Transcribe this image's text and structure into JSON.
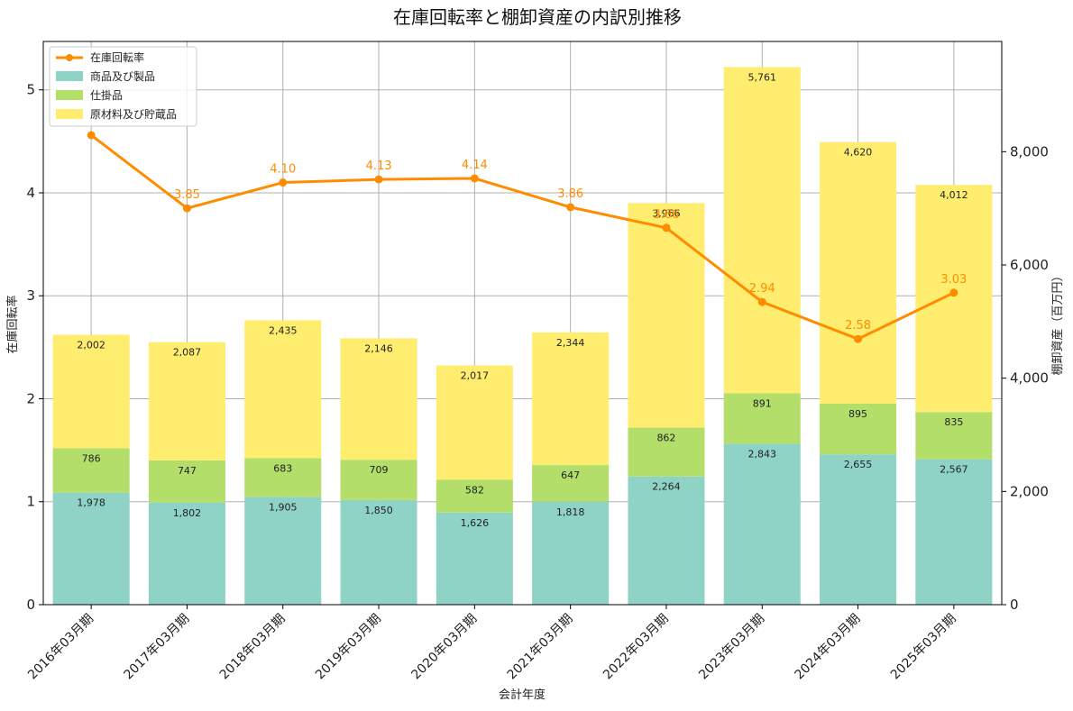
{
  "chart_data": {
    "type": "bar",
    "title": "在庫回転率と棚卸資産の内訳別推移",
    "xlabel": "会計年度",
    "ylabel_left": "在庫回転率",
    "ylabel_right": "棚卸資産（百万円）",
    "categories": [
      "2016年03月期",
      "2017年03月期",
      "2018年03月期",
      "2019年03月期",
      "2020年03月期",
      "2021年03月期",
      "2022年03月期",
      "2023年03月期",
      "2024年03月期",
      "2025年03月期"
    ],
    "ylim_left": [
      0,
      5.47
    ],
    "ylim_right": [
      0,
      9947
    ],
    "yticks_left": [
      "0",
      "1",
      "2",
      "3",
      "4",
      "5"
    ],
    "yticks_right": [
      "0",
      "2,000",
      "4,000",
      "6,000",
      "8,000"
    ],
    "yticks_left_values": [
      0,
      1,
      2,
      3,
      4,
      5
    ],
    "yticks_right_values": [
      0,
      2000,
      4000,
      6000,
      8000
    ],
    "grid": true,
    "legend_position": "top-left",
    "stacked_series": [
      {
        "name": "商品及び製品",
        "color": "#8fd3c7",
        "values": [
          1978,
          1802,
          1905,
          1850,
          1626,
          1818,
          2264,
          2843,
          2655,
          2567
        ],
        "labels": [
          "1,978",
          "1,802",
          "1,905",
          "1,850",
          "1,626",
          "1,818",
          "2,264",
          "2,843",
          "2,655",
          "2,567"
        ]
      },
      {
        "name": "仕掛品",
        "color": "#b3de69",
        "values": [
          786,
          747,
          683,
          709,
          582,
          647,
          862,
          891,
          895,
          835
        ],
        "labels": [
          "786",
          "747",
          "683",
          "709",
          "582",
          "647",
          "862",
          "891",
          "895",
          "835"
        ]
      },
      {
        "name": "原材料及び貯蔵品",
        "color": "#ffed6f",
        "values": [
          2002,
          2087,
          2435,
          2146,
          2017,
          2344,
          3966,
          5761,
          4620,
          4012
        ],
        "labels": [
          "2,002",
          "2,087",
          "2,435",
          "2,146",
          "2,017",
          "2,344",
          "3,966",
          "5,761",
          "4,620",
          "4,012"
        ]
      }
    ],
    "line_series": {
      "name": "在庫回転率",
      "color": "#ff8c00",
      "values": [
        4.56,
        3.85,
        4.1,
        4.13,
        4.14,
        3.86,
        3.66,
        2.94,
        2.58,
        3.03
      ],
      "labels": [
        null,
        "3.85",
        "4.10",
        "4.13",
        "4.14",
        "3.86",
        "3.66",
        "2.94",
        "2.58",
        "3.03"
      ]
    }
  }
}
